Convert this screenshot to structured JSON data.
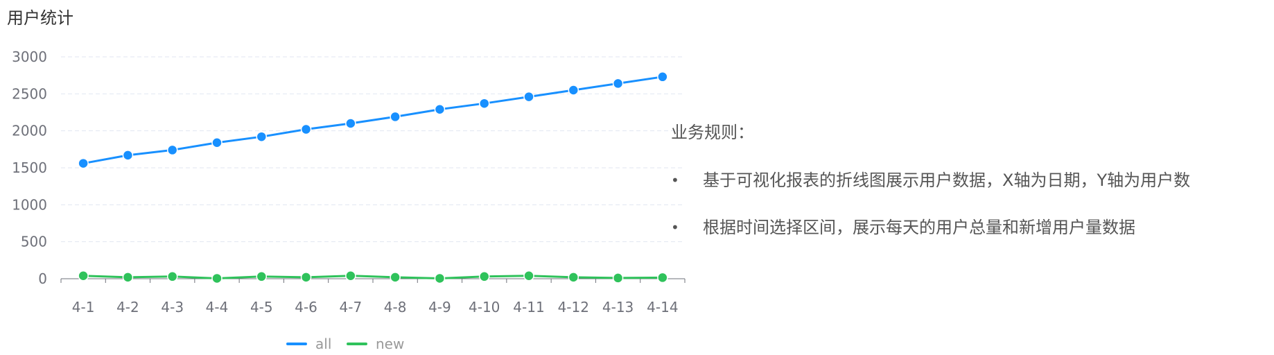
{
  "chart_data": {
    "type": "line",
    "title": "用户统计",
    "categories": [
      "4-1",
      "4-2",
      "4-3",
      "4-4",
      "4-5",
      "4-6",
      "4-7",
      "4-8",
      "4-9",
      "4-10",
      "4-11",
      "4-12",
      "4-13",
      "4-14"
    ],
    "series": [
      {
        "name": "all",
        "color": "#1890ff",
        "values": [
          1560,
          1670,
          1740,
          1840,
          1920,
          2020,
          2100,
          2190,
          2290,
          2370,
          2460,
          2550,
          2640,
          2730
        ]
      },
      {
        "name": "new",
        "color": "#2fc25b",
        "values": [
          40,
          20,
          30,
          5,
          30,
          20,
          40,
          20,
          5,
          30,
          40,
          20,
          10,
          15
        ]
      }
    ],
    "ylim": [
      0,
      3000
    ],
    "yticks": [
      0,
      500,
      1000,
      1500,
      2000,
      2500,
      3000
    ],
    "grid": true,
    "legend_position": "bottom",
    "xlabel": "",
    "ylabel": ""
  },
  "rules": {
    "heading": "业务规则：",
    "bullet": "•",
    "items": [
      "基于可视化报表的折线图展示用户数据，X轴为日期，Y轴为用户数",
      "根据时间选择区间，展示每天的用户总量和新增用户量数据"
    ]
  }
}
